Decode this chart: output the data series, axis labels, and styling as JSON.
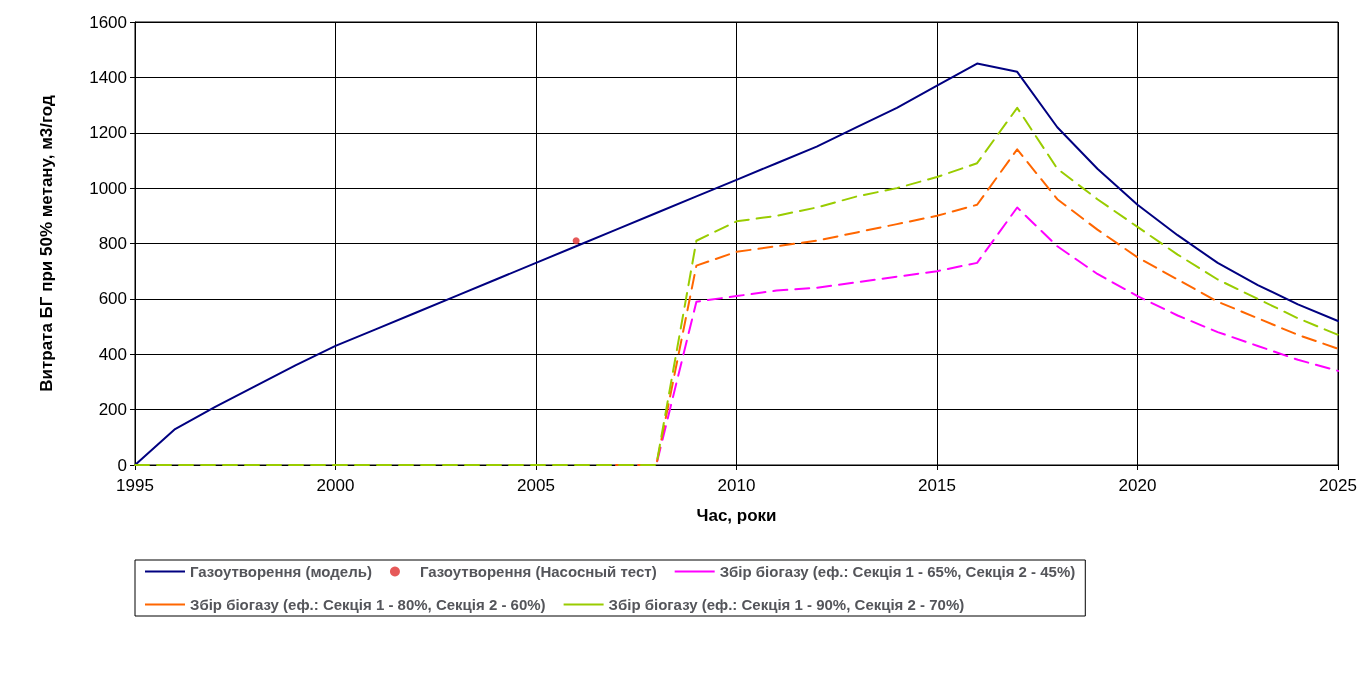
{
  "chart_data": {
    "type": "line",
    "xlabel": "Час, роки",
    "ylabel": "Витрата БГ при 50% метану, м3/год",
    "x": [
      1995,
      1996,
      1997,
      1998,
      1999,
      2000,
      2001,
      2002,
      2003,
      2004,
      2005,
      2006,
      2007,
      2008,
      2009,
      2010,
      2011,
      2012,
      2013,
      2014,
      2015,
      2016,
      2017,
      2018,
      2019,
      2020,
      2021,
      2022,
      2023,
      2024,
      2025
    ],
    "xlim": [
      1995,
      2025
    ],
    "xticks": [
      1995,
      2000,
      2005,
      2010,
      2015,
      2020,
      2025
    ],
    "ylim": [
      0,
      1600
    ],
    "yticks": [
      0,
      200,
      400,
      600,
      800,
      1000,
      1200,
      1400,
      1600
    ],
    "grid": true,
    "legend": "bottom",
    "marker": "none",
    "series": [
      {
        "name": "Газоутворення (модель)",
        "color": "#000080",
        "line_style": "solid",
        "values": [
          0,
          130,
          210,
          285,
          360,
          430,
          490,
          550,
          610,
          670,
          730,
          790,
          850,
          910,
          970,
          1030,
          1090,
          1150,
          1220,
          1290,
          1370,
          1450,
          1420,
          1220,
          1070,
          940,
          830,
          730,
          650,
          580,
          520
        ]
      },
      {
        "name": "Газоутворення (Насосный тест)",
        "type": "scatter",
        "marker": "circle",
        "color": "#e03030",
        "x": [
          2006
        ],
        "values": [
          810
        ]
      },
      {
        "name": "Збір біогазу (еф.: Секція 1 - 65%, Секція 2 - 45%)",
        "color": "#ff00ff",
        "line_style": "dashed",
        "values": [
          null,
          null,
          null,
          null,
          null,
          null,
          null,
          null,
          null,
          null,
          null,
          null,
          0,
          0,
          590,
          610,
          630,
          640,
          660,
          680,
          700,
          730,
          930,
          790,
          690,
          610,
          540,
          480,
          430,
          380,
          340
        ]
      },
      {
        "name": "Збір біогазу (еф.: Секція 1 - 80%, Секція 2 - 60%)",
        "color": "#ff6600",
        "line_style": "dashed",
        "values": [
          null,
          null,
          null,
          null,
          null,
          null,
          null,
          null,
          null,
          null,
          null,
          null,
          0,
          0,
          720,
          770,
          790,
          810,
          840,
          870,
          900,
          940,
          1140,
          960,
          850,
          750,
          670,
          590,
          530,
          470,
          420
        ]
      },
      {
        "name": "Збір біогазу (еф.: Секція 1 - 90%, Секція 2 - 70%)",
        "color": "#99cc00",
        "line_style": "dashed",
        "values": [
          0,
          0,
          0,
          0,
          0,
          0,
          0,
          0,
          0,
          0,
          0,
          0,
          0,
          0,
          810,
          880,
          900,
          930,
          970,
          1000,
          1040,
          1090,
          1290,
          1070,
          960,
          860,
          760,
          670,
          600,
          530,
          470
        ]
      }
    ]
  }
}
